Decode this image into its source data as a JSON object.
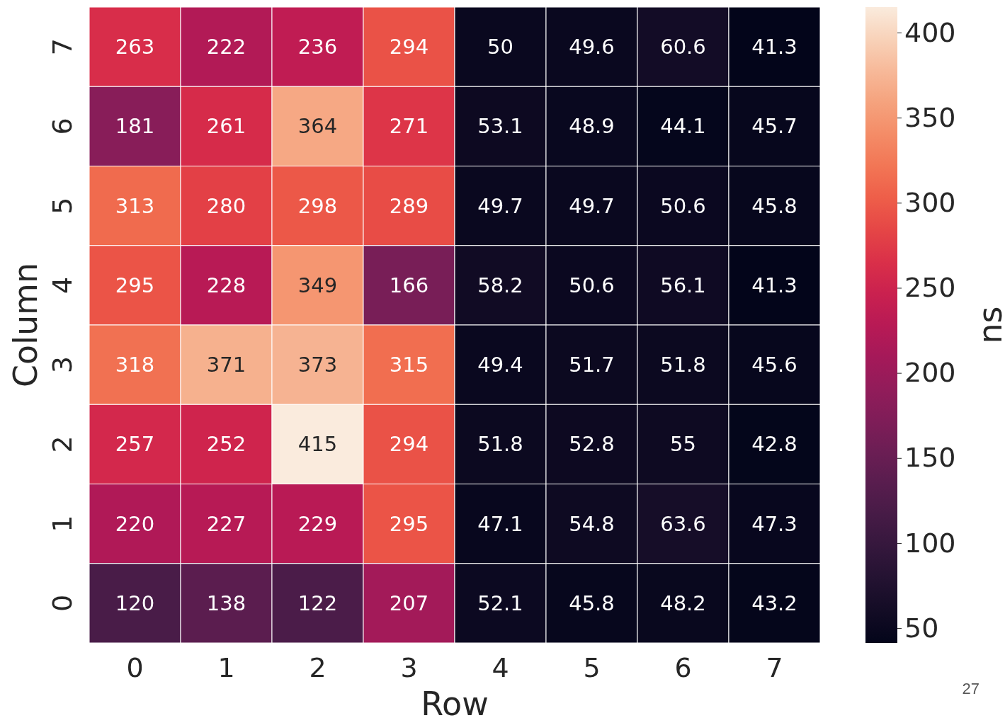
{
  "chart_data": {
    "type": "heatmap",
    "xlabel": "Row",
    "ylabel": "Column",
    "clabel": "ns",
    "categories": [
      "0",
      "1",
      "2",
      "3",
      "4",
      "5",
      "6",
      "7"
    ],
    "y_categories": [
      "7",
      "6",
      "5",
      "4",
      "3",
      "2",
      "1",
      "0"
    ],
    "cells": [
      [
        263,
        222,
        236,
        294,
        50,
        49.6,
        60.6,
        41.3
      ],
      [
        181,
        261,
        364,
        271,
        53.1,
        48.9,
        44.1,
        45.7
      ],
      [
        313,
        280,
        298,
        289,
        49.7,
        49.7,
        50.6,
        45.8
      ],
      [
        295,
        228,
        349,
        166,
        58.2,
        50.6,
        56.1,
        41.3
      ],
      [
        318,
        371,
        373,
        315,
        49.4,
        51.7,
        51.8,
        45.6
      ],
      [
        257,
        252,
        415,
        294,
        51.8,
        52.8,
        55,
        42.8
      ],
      [
        220,
        227,
        229,
        295,
        47.1,
        54.8,
        63.6,
        47.3
      ],
      [
        120,
        138,
        122,
        207,
        52.1,
        45.8,
        48.2,
        43.2
      ]
    ],
    "data_labels": true,
    "clim": [
      41.3,
      415
    ],
    "cticks": [
      50,
      100,
      150,
      200,
      250,
      300,
      350,
      400
    ],
    "annotations": [
      "27"
    ]
  }
}
